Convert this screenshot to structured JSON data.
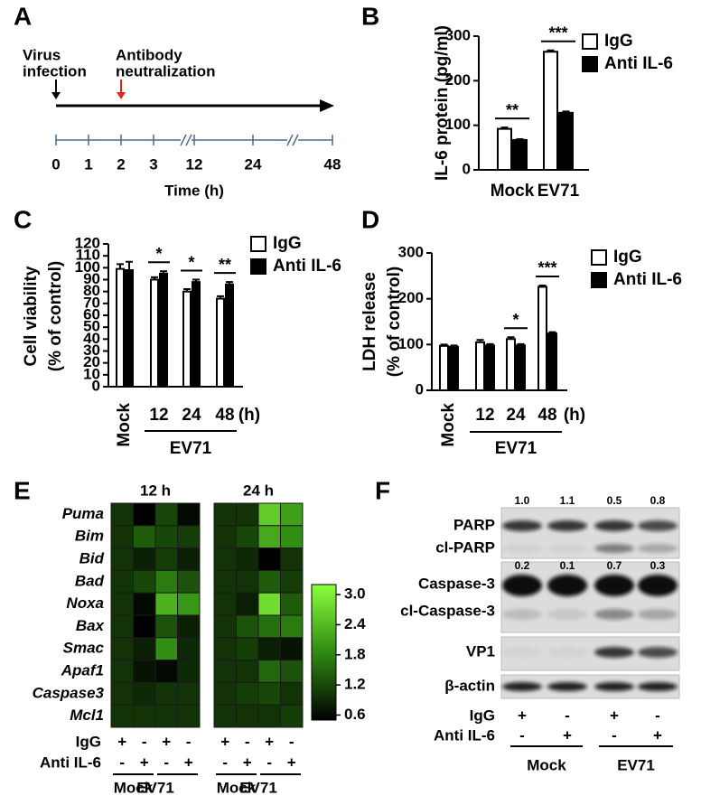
{
  "chart_data": [
    {
      "type": "timeline",
      "panel": "A",
      "xlabel": "Time (h)",
      "ticks": [
        0,
        1,
        2,
        3,
        12,
        24,
        48
      ],
      "events": [
        {
          "text": [
            "Virus",
            "infection"
          ],
          "at": 0,
          "color": "#000000"
        },
        {
          "text": [
            "Antibody",
            "neutralization"
          ],
          "at": 2,
          "color": "#e8231f"
        }
      ]
    },
    {
      "type": "bar",
      "panel": "B",
      "ylabel": "IL-6 protein (pg/ml)",
      "categories": [
        "Mock",
        "EV71"
      ],
      "series": [
        {
          "name": "IgG",
          "color": "#ffffff",
          "values": [
            92,
            265
          ],
          "errors": [
            3,
            3
          ]
        },
        {
          "name": "Anti IL-6",
          "color": "#000000",
          "values": [
            67,
            128
          ],
          "errors": [
            2,
            3
          ]
        }
      ],
      "significance": [
        "**",
        "***"
      ],
      "ylim": [
        0,
        300
      ],
      "yticks": [
        0,
        100,
        200,
        300
      ]
    },
    {
      "type": "bar",
      "panel": "C",
      "ylabel": [
        "Cell viability",
        "(% of control)"
      ],
      "categories": [
        "Mock",
        "12",
        "24",
        "48"
      ],
      "unit": "(h)",
      "group_label": "EV71",
      "series": [
        {
          "name": "IgG",
          "color": "#ffffff",
          "values": [
            99,
            90,
            80,
            74
          ],
          "errors": [
            4,
            2,
            2,
            2
          ]
        },
        {
          "name": "Anti IL-6",
          "color": "#000000",
          "values": [
            98,
            95,
            88,
            86
          ],
          "errors": [
            7,
            2,
            2,
            2
          ]
        }
      ],
      "significance": [
        null,
        "*",
        "*",
        "**"
      ],
      "ylim": [
        0,
        120
      ],
      "yticks": [
        0,
        10,
        20,
        30,
        40,
        50,
        60,
        70,
        80,
        90,
        100,
        110,
        120
      ]
    },
    {
      "type": "bar",
      "panel": "D",
      "ylabel": [
        "LDH release",
        "(% of control)"
      ],
      "categories": [
        "Mock",
        "12",
        "24",
        "48"
      ],
      "unit": "(h)",
      "group_label": "EV71",
      "series": [
        {
          "name": "IgG",
          "color": "#ffffff",
          "values": [
            97,
            105,
            112,
            226
          ],
          "errors": [
            3,
            5,
            4,
            3
          ]
        },
        {
          "name": "Anti IL-6",
          "color": "#000000",
          "values": [
            95,
            98,
            98,
            124
          ],
          "errors": [
            3,
            3,
            3,
            3
          ]
        }
      ],
      "significance": [
        null,
        null,
        "*",
        "***"
      ],
      "ylim": [
        0,
        300
      ],
      "yticks": [
        0,
        100,
        200,
        300
      ]
    },
    {
      "type": "heatmap",
      "panel": "E",
      "rows": [
        "Puma",
        "Bim",
        "Bid",
        "Bad",
        "Noxa",
        "Bax",
        "Smac",
        "Apaf1",
        "Caspase3",
        "Mcl1"
      ],
      "blocks": [
        {
          "title": "12 h",
          "values": [
            [
              1.0,
              0.5,
              1.2,
              0.6
            ],
            [
              1.0,
              1.4,
              1.2,
              1.1
            ],
            [
              1.0,
              0.8,
              1.1,
              0.8
            ],
            [
              1.0,
              1.2,
              1.7,
              1.3
            ],
            [
              1.0,
              0.6,
              2.3,
              2.0
            ],
            [
              1.0,
              0.5,
              1.3,
              0.8
            ],
            [
              1.0,
              0.8,
              1.9,
              0.9
            ],
            [
              1.0,
              0.7,
              0.6,
              0.9
            ],
            [
              1.0,
              0.9,
              1.0,
              1.0
            ],
            [
              1.0,
              1.0,
              1.0,
              1.0
            ]
          ]
        },
        {
          "title": "24 h",
          "values": [
            [
              1.0,
              1.0,
              2.6,
              2.1
            ],
            [
              1.0,
              1.2,
              2.2,
              1.9
            ],
            [
              1.0,
              0.9,
              0.5,
              1.0
            ],
            [
              1.0,
              1.0,
              1.4,
              1.1
            ],
            [
              1.0,
              0.8,
              2.8,
              1.4
            ],
            [
              1.0,
              1.3,
              1.6,
              1.7
            ],
            [
              1.0,
              1.1,
              0.8,
              0.7
            ],
            [
              1.0,
              1.0,
              1.5,
              1.3
            ],
            [
              1.0,
              1.1,
              1.2,
              1.0
            ],
            [
              1.0,
              1.0,
              1.0,
              1.1
            ]
          ]
        }
      ],
      "row_labels": [
        "IgG",
        "Anti IL-6"
      ],
      "signs": [
        [
          "+",
          "-",
          "+",
          "-"
        ],
        [
          "-",
          "+",
          "-",
          "+"
        ]
      ],
      "groups": [
        "Mock",
        "EV71"
      ],
      "clim": [
        0.5,
        3.2
      ],
      "cticks": [
        {
          "value": 3,
          "label": "3.0"
        },
        2.4,
        1.8,
        1.2,
        0.6
      ],
      "cmap": [
        "#000000",
        "#2f8a12",
        "#8cff3c"
      ]
    },
    {
      "type": "blot",
      "panel": "F",
      "quant": [
        [
          "1.0",
          "1.1",
          "0.5",
          "0.8"
        ],
        [
          "0.2",
          "0.1",
          "0.7",
          "0.3"
        ]
      ],
      "bands": [
        "PARP",
        "cl-PARP",
        "Caspase-3",
        "cl-Caspase-3",
        "VP1",
        "β-actin"
      ],
      "row_labels": [
        "IgG",
        "Anti IL-6"
      ],
      "signs": [
        [
          "+",
          "-",
          "+",
          "-"
        ],
        [
          "-",
          "+",
          "-",
          "+"
        ]
      ],
      "groups": [
        "Mock",
        "EV71"
      ]
    }
  ]
}
